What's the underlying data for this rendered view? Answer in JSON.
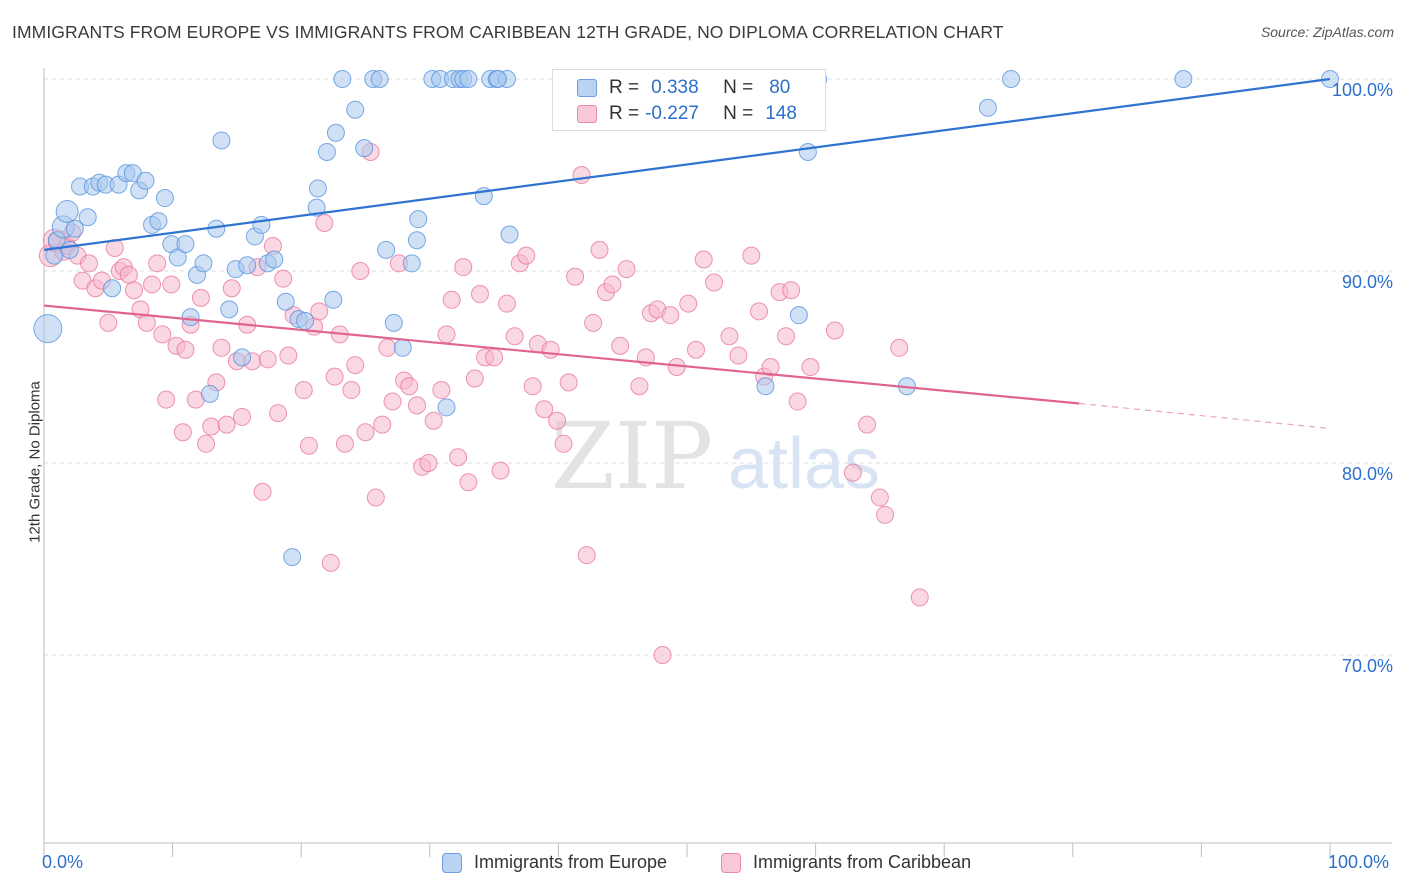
{
  "title": "IMMIGRANTS FROM EUROPE VS IMMIGRANTS FROM CARIBBEAN 12TH GRADE, NO DIPLOMA CORRELATION CHART",
  "source": "Source: ZipAtlas.com",
  "colors": {
    "europe": "#4f8fdc",
    "europe_fill": "#a9c8ef",
    "caribbean": "#e87199",
    "caribbean_fill": "#f5b8cc",
    "accent": "#2d6fc9"
  },
  "legend": {
    "rows": [
      {
        "r_label": "R =",
        "r_value": "0.338",
        "n_label": "N =",
        "n_value": "80"
      },
      {
        "r_label": "R =",
        "r_value": "-0.227",
        "n_label": "N =",
        "n_value": "148"
      }
    ]
  },
  "chart_data": {
    "type": "scatter",
    "ylabel": "12th Grade, No Diploma",
    "xlim": [
      0,
      100
    ],
    "ylim": [
      60,
      101.5
    ],
    "x_tick_labels": [
      "0.0%",
      "100.0%"
    ],
    "y_ticks": [
      70,
      80,
      90,
      100
    ],
    "y_tick_labels": [
      "70.0%",
      "80.0%",
      "90.0%",
      "100.0%"
    ],
    "grid": "horizontal dashed",
    "watermark": "ZIPatlas",
    "series": [
      {
        "name": "Immigrants from Europe",
        "trend": {
          "x0": 0,
          "y0": 91.1,
          "x1": 100,
          "y1": 100.0
        },
        "points": [
          [
            0.3,
            87.0
          ],
          [
            0.8,
            90.8
          ],
          [
            1.0,
            91.6
          ],
          [
            1.5,
            92.3
          ],
          [
            1.8,
            93.1
          ],
          [
            2.0,
            91.1
          ],
          [
            2.4,
            92.2
          ],
          [
            2.8,
            94.4
          ],
          [
            3.4,
            92.8
          ],
          [
            3.8,
            94.4
          ],
          [
            4.3,
            94.6
          ],
          [
            4.8,
            94.5
          ],
          [
            5.3,
            89.1
          ],
          [
            5.8,
            94.5
          ],
          [
            6.4,
            95.1
          ],
          [
            6.9,
            95.1
          ],
          [
            7.4,
            94.2
          ],
          [
            7.9,
            94.7
          ],
          [
            8.4,
            92.4
          ],
          [
            8.9,
            92.6
          ],
          [
            9.4,
            93.8
          ],
          [
            9.9,
            91.4
          ],
          [
            10.4,
            90.7
          ],
          [
            11.0,
            91.4
          ],
          [
            11.4,
            87.6
          ],
          [
            11.9,
            89.8
          ],
          [
            12.4,
            90.4
          ],
          [
            12.9,
            83.6
          ],
          [
            13.4,
            92.2
          ],
          [
            13.8,
            96.8
          ],
          [
            14.4,
            88.0
          ],
          [
            14.9,
            90.1
          ],
          [
            15.4,
            85.5
          ],
          [
            15.8,
            90.3
          ],
          [
            16.4,
            91.8
          ],
          [
            16.9,
            92.4
          ],
          [
            17.4,
            90.4
          ],
          [
            17.9,
            90.6
          ],
          [
            18.8,
            88.4
          ],
          [
            19.3,
            75.1
          ],
          [
            19.8,
            87.5
          ],
          [
            20.3,
            87.4
          ],
          [
            21.3,
            94.3
          ],
          [
            21.2,
            93.3
          ],
          [
            22.0,
            96.2
          ],
          [
            22.5,
            88.5
          ],
          [
            22.7,
            97.2
          ],
          [
            23.2,
            100.0
          ],
          [
            24.2,
            98.4
          ],
          [
            24.9,
            96.4
          ],
          [
            25.6,
            100.0
          ],
          [
            26.1,
            100.0
          ],
          [
            26.6,
            91.1
          ],
          [
            27.2,
            87.3
          ],
          [
            27.9,
            86.0
          ],
          [
            28.6,
            90.4
          ],
          [
            29.0,
            91.6
          ],
          [
            29.1,
            92.7
          ],
          [
            30.2,
            100.0
          ],
          [
            30.8,
            100.0
          ],
          [
            31.3,
            82.9
          ],
          [
            31.8,
            100.0
          ],
          [
            32.3,
            100.0
          ],
          [
            32.6,
            100.0
          ],
          [
            33.0,
            100.0
          ],
          [
            34.2,
            93.9
          ],
          [
            34.7,
            100.0
          ],
          [
            35.2,
            100.0
          ],
          [
            36.0,
            100.0
          ],
          [
            35.3,
            100.0
          ],
          [
            36.2,
            91.9
          ],
          [
            40.6,
            100.0
          ],
          [
            41.1,
            100.0
          ],
          [
            56.1,
            84.0
          ],
          [
            58.7,
            87.7
          ],
          [
            59.4,
            96.2
          ],
          [
            60.2,
            100.0
          ],
          [
            67.1,
            84.0
          ],
          [
            73.4,
            98.5
          ],
          [
            75.2,
            100.0
          ],
          [
            88.6,
            100.0
          ],
          [
            100.0,
            100.0
          ]
        ]
      },
      {
        "name": "Immigrants from Caribbean",
        "trend": {
          "x0": 0,
          "y0": 88.2,
          "x1": 80.5,
          "y1": 83.1,
          "dash_to_x": 100,
          "dash_to_y": 81.8
        },
        "points": [
          [
            0.5,
            90.8
          ],
          [
            0.8,
            91.6
          ],
          [
            1.2,
            91.5
          ],
          [
            1.5,
            91.0
          ],
          [
            1.8,
            91.3
          ],
          [
            2.2,
            92.0
          ],
          [
            2.6,
            90.8
          ],
          [
            3.0,
            89.5
          ],
          [
            3.5,
            90.4
          ],
          [
            4.0,
            89.1
          ],
          [
            4.5,
            89.5
          ],
          [
            5.0,
            87.3
          ],
          [
            5.5,
            91.2
          ],
          [
            5.9,
            90.0
          ],
          [
            6.2,
            90.2
          ],
          [
            6.6,
            89.8
          ],
          [
            7.0,
            89.0
          ],
          [
            7.5,
            88.0
          ],
          [
            8.0,
            87.3
          ],
          [
            8.4,
            89.3
          ],
          [
            8.8,
            90.4
          ],
          [
            9.2,
            86.7
          ],
          [
            9.5,
            83.3
          ],
          [
            9.9,
            89.3
          ],
          [
            10.3,
            86.1
          ],
          [
            10.8,
            81.6
          ],
          [
            11.0,
            85.9
          ],
          [
            11.4,
            87.2
          ],
          [
            11.8,
            83.3
          ],
          [
            12.2,
            88.6
          ],
          [
            12.6,
            81.0
          ],
          [
            13.0,
            81.9
          ],
          [
            13.4,
            84.2
          ],
          [
            13.8,
            86.0
          ],
          [
            14.2,
            82.0
          ],
          [
            14.6,
            89.1
          ],
          [
            15.0,
            85.3
          ],
          [
            15.4,
            82.4
          ],
          [
            15.8,
            87.2
          ],
          [
            16.2,
            85.3
          ],
          [
            16.6,
            90.2
          ],
          [
            17.0,
            78.5
          ],
          [
            17.4,
            85.4
          ],
          [
            17.8,
            91.3
          ],
          [
            18.2,
            82.6
          ],
          [
            18.6,
            89.6
          ],
          [
            19.0,
            85.6
          ],
          [
            19.4,
            87.7
          ],
          [
            20.2,
            83.8
          ],
          [
            20.6,
            80.9
          ],
          [
            21.0,
            87.1
          ],
          [
            21.4,
            87.9
          ],
          [
            21.8,
            92.5
          ],
          [
            22.3,
            74.8
          ],
          [
            22.6,
            84.5
          ],
          [
            23.0,
            86.7
          ],
          [
            23.4,
            81.0
          ],
          [
            23.9,
            83.8
          ],
          [
            24.2,
            85.1
          ],
          [
            24.6,
            90.0
          ],
          [
            25.0,
            81.6
          ],
          [
            25.4,
            96.2
          ],
          [
            25.8,
            78.2
          ],
          [
            26.3,
            82.0
          ],
          [
            26.7,
            86.0
          ],
          [
            27.1,
            83.2
          ],
          [
            27.6,
            90.4
          ],
          [
            28.0,
            84.3
          ],
          [
            28.4,
            84.0
          ],
          [
            29.0,
            83.0
          ],
          [
            29.4,
            79.8
          ],
          [
            29.9,
            80.0
          ],
          [
            30.3,
            82.2
          ],
          [
            30.9,
            83.8
          ],
          [
            31.3,
            86.7
          ],
          [
            31.7,
            88.5
          ],
          [
            32.2,
            80.3
          ],
          [
            32.6,
            90.2
          ],
          [
            33.0,
            79.0
          ],
          [
            33.5,
            84.4
          ],
          [
            33.9,
            88.8
          ],
          [
            34.3,
            85.5
          ],
          [
            35.0,
            85.5
          ],
          [
            35.5,
            79.6
          ],
          [
            36.0,
            88.3
          ],
          [
            36.6,
            86.6
          ],
          [
            37.0,
            90.4
          ],
          [
            37.5,
            90.8
          ],
          [
            38.0,
            84.0
          ],
          [
            38.4,
            86.2
          ],
          [
            38.9,
            82.8
          ],
          [
            39.4,
            85.9
          ],
          [
            39.9,
            82.2
          ],
          [
            40.4,
            81.0
          ],
          [
            40.8,
            84.2
          ],
          [
            41.3,
            89.7
          ],
          [
            41.8,
            95.0
          ],
          [
            42.2,
            75.2
          ],
          [
            42.7,
            87.3
          ],
          [
            43.2,
            91.1
          ],
          [
            43.7,
            88.9
          ],
          [
            44.2,
            89.3
          ],
          [
            44.8,
            86.1
          ],
          [
            45.3,
            90.1
          ],
          [
            46.3,
            84.0
          ],
          [
            46.8,
            85.5
          ],
          [
            47.2,
            87.8
          ],
          [
            47.7,
            88.0
          ],
          [
            48.1,
            70.0
          ],
          [
            48.7,
            87.7
          ],
          [
            49.2,
            85.0
          ],
          [
            50.1,
            88.3
          ],
          [
            50.7,
            85.9
          ],
          [
            51.3,
            90.6
          ],
          [
            52.1,
            89.4
          ],
          [
            53.3,
            86.6
          ],
          [
            54.0,
            85.6
          ],
          [
            55.0,
            90.8
          ],
          [
            55.6,
            87.9
          ],
          [
            56.0,
            84.5
          ],
          [
            56.5,
            85.0
          ],
          [
            57.2,
            88.9
          ],
          [
            57.7,
            86.6
          ],
          [
            58.1,
            89.0
          ],
          [
            58.6,
            83.2
          ],
          [
            59.6,
            85.0
          ],
          [
            60.1,
            100.0
          ],
          [
            61.5,
            86.9
          ],
          [
            62.9,
            79.5
          ],
          [
            64.0,
            82.0
          ],
          [
            65.0,
            78.2
          ],
          [
            65.4,
            77.3
          ],
          [
            66.5,
            86.0
          ],
          [
            68.1,
            73.0
          ]
        ]
      }
    ]
  },
  "bottom_legend": {
    "europe": "Immigrants from Europe",
    "caribbean": "Immigrants from Caribbean"
  }
}
